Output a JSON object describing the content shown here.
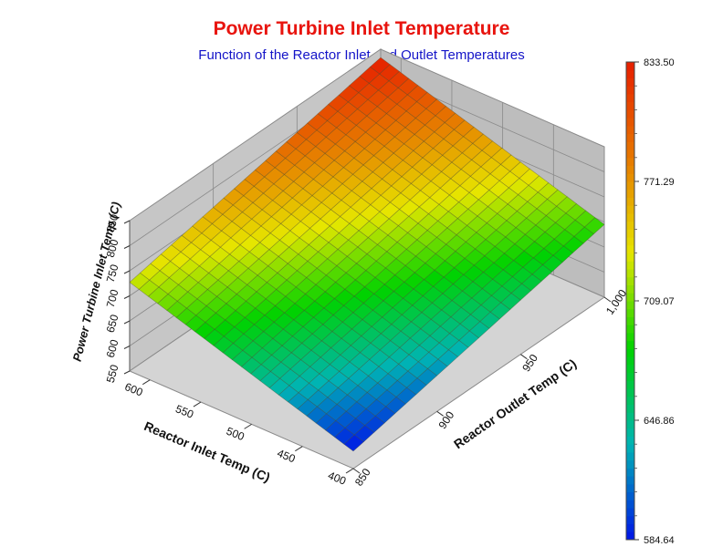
{
  "chart_data": {
    "type": "surface3d",
    "title": "Power Turbine Inlet Temperature",
    "subtitle": "Function of the Reactor Inlet and Outlet Temperatures",
    "x_axis": {
      "label": "Reactor Inlet Temp (C)",
      "range": [
        400,
        620
      ],
      "ticks": [
        "400",
        "450",
        "500",
        "550",
        "600"
      ]
    },
    "y_axis": {
      "label": "Reactor Outlet Temp (C)",
      "range": [
        850,
        1000
      ],
      "ticks": [
        "850",
        "900",
        "950",
        "1,000"
      ]
    },
    "z_axis": {
      "label": "Power Turbine Inlet Temp (C)",
      "range": [
        550,
        850
      ],
      "ticks": [
        "550",
        "600",
        "650",
        "700",
        "750",
        "800",
        "850"
      ]
    },
    "corner_values": [
      {
        "inlet": 400,
        "outlet": 850,
        "z": 584.64
      },
      {
        "inlet": 620,
        "outlet": 850,
        "z": 727.0
      },
      {
        "inlet": 400,
        "outlet": 1000,
        "z": 695.0
      },
      {
        "inlet": 620,
        "outlet": 1000,
        "z": 833.5
      }
    ],
    "colorbar": {
      "min": 584.64,
      "max": 833.5,
      "ticks": [
        "833.50",
        "771.29",
        "709.07",
        "646.86",
        "584.64"
      ],
      "colors": [
        "#0014e6",
        "#00b4b4",
        "#00d200",
        "#e6e600",
        "#e67800",
        "#e61e00"
      ]
    },
    "grid": true
  }
}
